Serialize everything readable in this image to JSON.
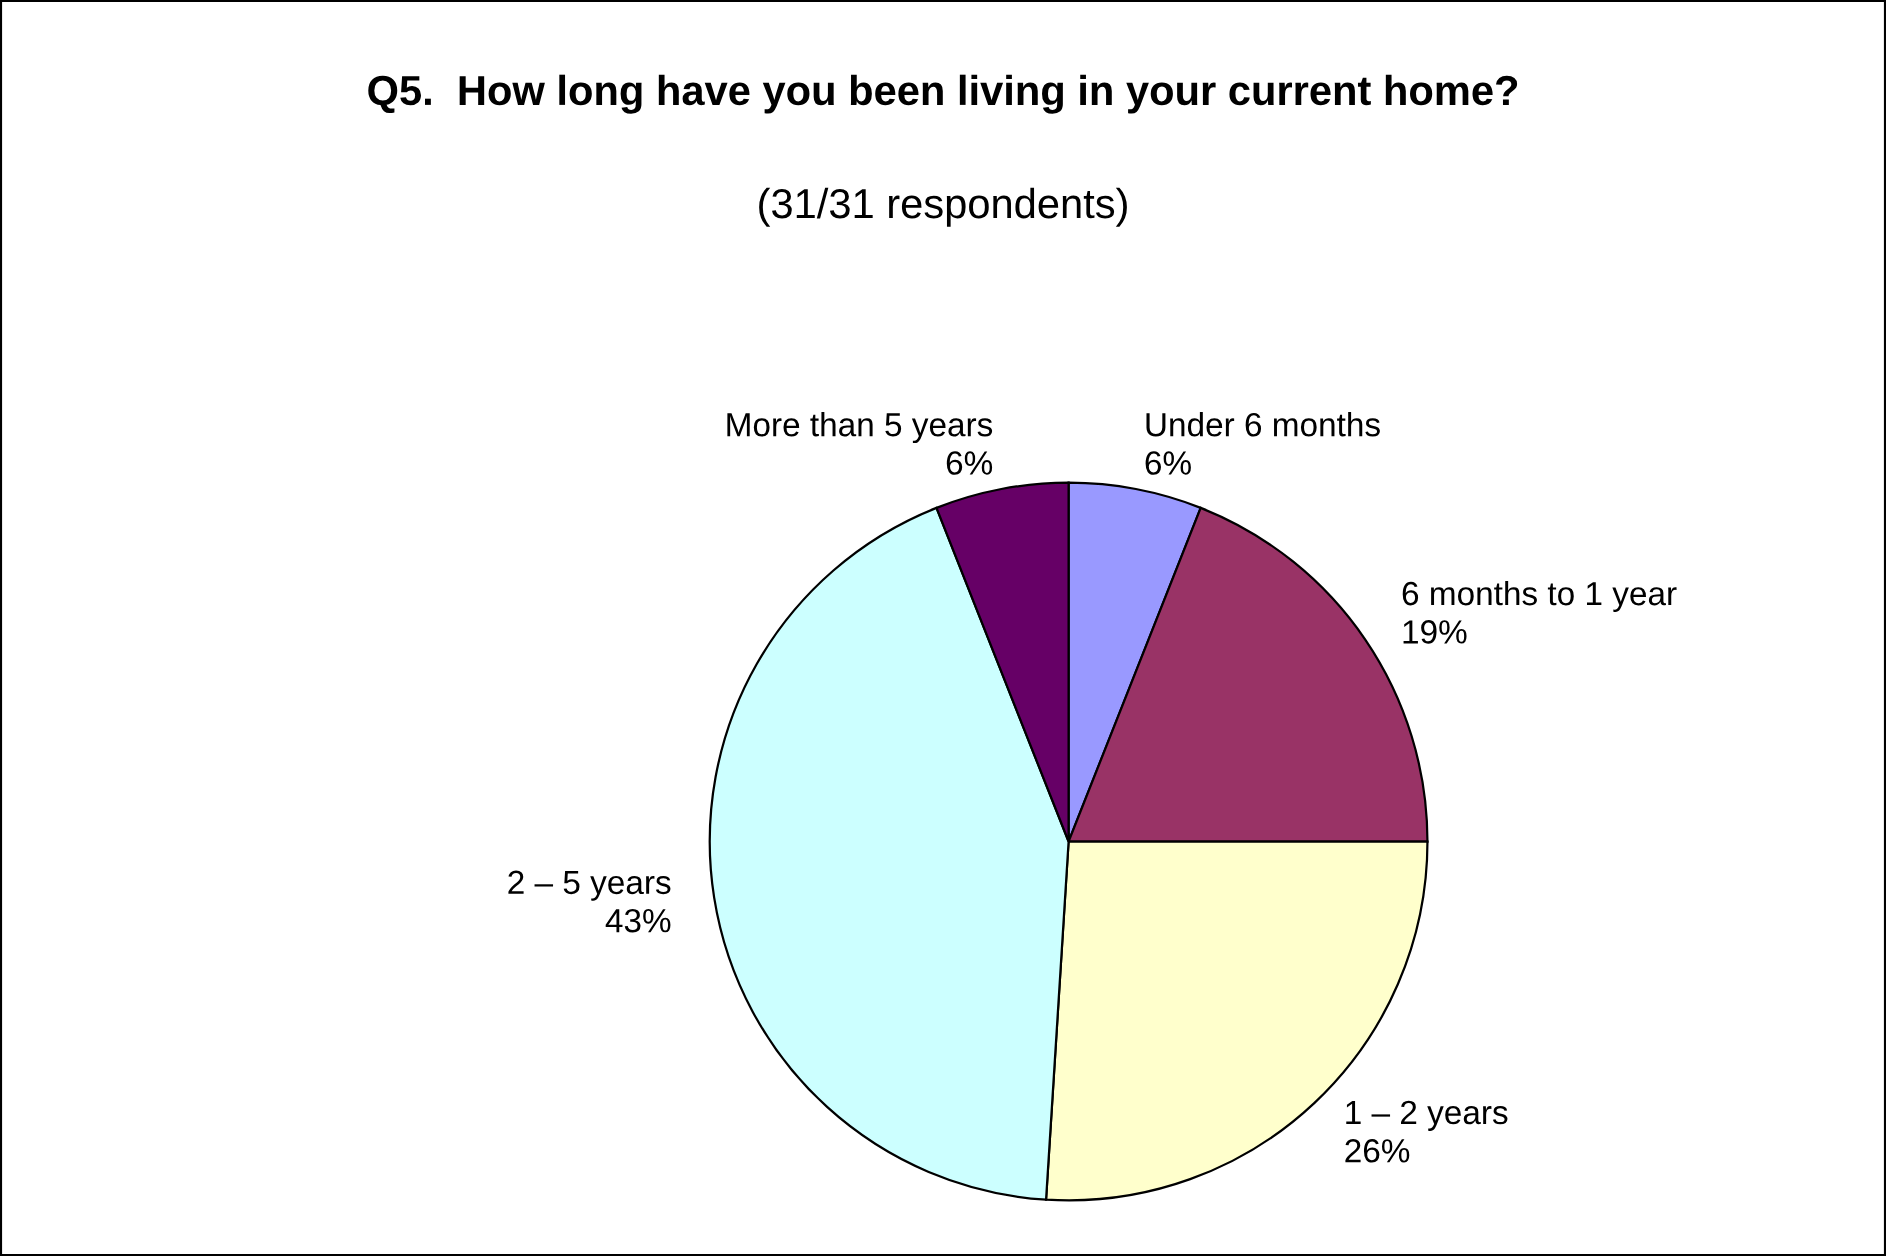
{
  "chart_data": {
    "type": "pie",
    "title": "Q5.  How long have you been living in your current home?",
    "subtitle": "(31/31 respondents)",
    "categories": [
      "Under 6 months",
      "6 months to 1 year",
      "1 – 2 years",
      "2 – 5 years",
      "More than 5 years"
    ],
    "values": [
      6,
      19,
      26,
      43,
      6
    ],
    "value_labels": [
      "6%",
      "19%",
      "26%",
      "43%",
      "6%"
    ],
    "colors": [
      "#9999ff",
      "#993366",
      "#ffffcc",
      "#ccffff",
      "#660066"
    ],
    "legend": false
  }
}
